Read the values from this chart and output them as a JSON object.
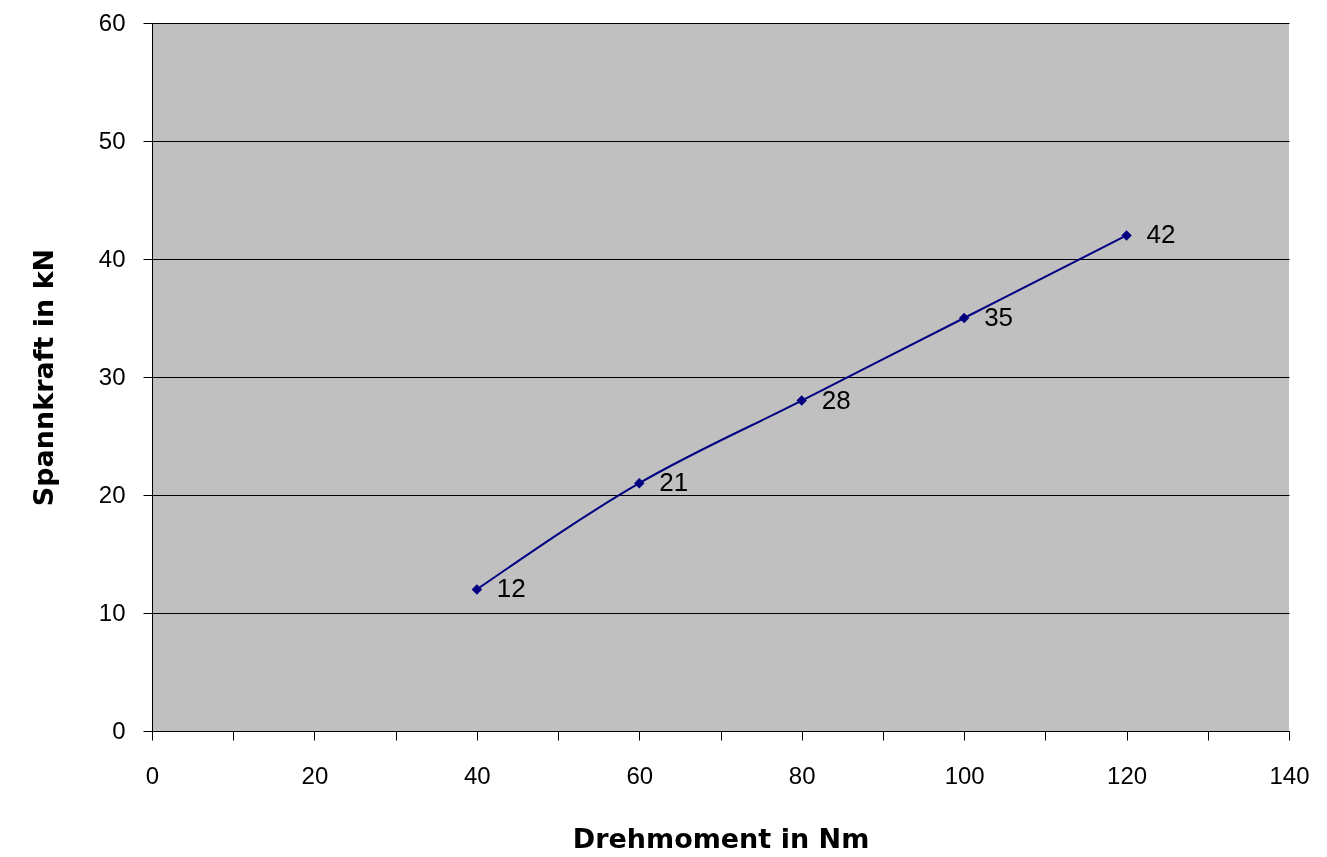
{
  "chart_data": {
    "type": "line",
    "xlabel": "Drehmoment in Nm",
    "ylabel": "Spannkraft in kN",
    "x": [
      40,
      60,
      80,
      100,
      120
    ],
    "series": [
      {
        "color": "#000080",
        "values": [
          12,
          21,
          28,
          35,
          42
        ]
      }
    ],
    "xlim": [
      0,
      140
    ],
    "xticks": [
      0,
      {
        "value": 10,
        "label": null
      },
      20,
      {
        "value": 30,
        "label": null
      },
      40,
      {
        "value": 50,
        "label": null
      },
      60,
      {
        "value": 70,
        "label": null
      },
      80,
      {
        "value": 90,
        "label": null
      },
      100,
      {
        "value": 110,
        "label": null
      },
      120,
      {
        "value": 130,
        "label": null
      },
      140
    ],
    "ylim": [
      0,
      60
    ],
    "yticks": [
      0,
      10,
      20,
      30,
      40,
      50,
      60
    ],
    "grid": "y",
    "marker": "diamond",
    "line_style": "solid",
    "data_labels": true,
    "legend": false
  }
}
